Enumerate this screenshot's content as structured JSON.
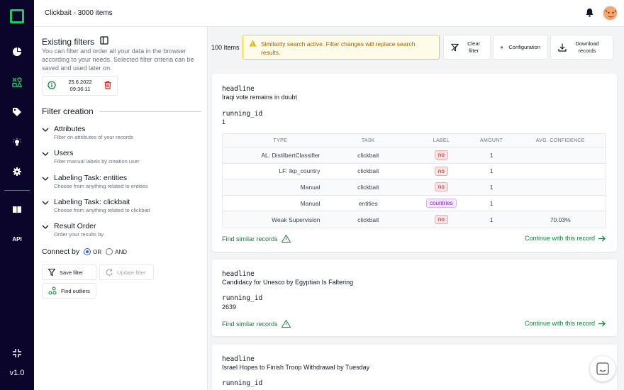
{
  "app": {
    "title": "Clickbait - 3000 items",
    "version": "v1.0",
    "api_label": "API"
  },
  "filters": {
    "existing_title": "Existing filters",
    "existing_desc": "You can filter and order all your data in the browser according to your needs. Selected filter criteria can be saved and used later on.",
    "saved_date": "25.6.2022",
    "saved_time": "09:36:11",
    "creation_title": "Filter creation",
    "sections": [
      {
        "title": "Attributes",
        "subtitle": "Filter on attributes of your records"
      },
      {
        "title": "Users",
        "subtitle": "Filter manual labels by creation user"
      },
      {
        "title": "Labeling Task:  entities",
        "subtitle": "Choose from anything related to entities"
      },
      {
        "title": "Labeling Task:  clickbait",
        "subtitle": "Choose from anything related to clickbait"
      },
      {
        "title": "Result Order",
        "subtitle": "Order your results by"
      }
    ],
    "connect_label": "Connect by",
    "or_label": "OR",
    "and_label": "AND",
    "save_filter": "Save filter",
    "update_filter": "Update filter",
    "find_outliers": "Find outliers"
  },
  "toolbar": {
    "items_count": "100 Items",
    "warning": "Similarity search active. Filter changes will replace search results.",
    "clear_filter": "Clear filter",
    "configuration": "Configuration",
    "download_records": "Download records"
  },
  "table_headers": [
    "TYPE",
    "TASK",
    "LABEL",
    "AMOUNT",
    "AVG. CONFIDENCE"
  ],
  "records": [
    {
      "headline_key": "headline",
      "headline": "Iraqi vote remains in doubt",
      "id_key": "running_id",
      "id": "1",
      "rows": [
        {
          "type": "AL: DistilbertClassifier",
          "task": "clickbait",
          "label": "no",
          "amount": "1",
          "conf": ""
        },
        {
          "type": "LF: lkp_country",
          "task": "clickbait",
          "label": "no",
          "amount": "1",
          "conf": ""
        },
        {
          "type": "Manual",
          "task": "clickbait",
          "label": "no",
          "amount": "1",
          "conf": ""
        },
        {
          "type": "Manual",
          "task": "entities",
          "label": "countries",
          "amount": "1",
          "conf": ""
        },
        {
          "type": "Weak Supervision",
          "task": "clickbait",
          "label": "no",
          "amount": "1",
          "conf": "70.03%"
        }
      ]
    },
    {
      "headline_key": "headline",
      "headline": "Candidacy for Unesco by Egyptian Is Faltering",
      "id_key": "running_id",
      "id": "2639"
    },
    {
      "headline_key": "headline",
      "headline": "Israel Hopes to Finish Troop Withdrawal by Tuesday",
      "id_key": "running_id"
    }
  ],
  "actions": {
    "find_similar": "Find similar records",
    "continue": "Continue with this record"
  },
  "colors": {
    "rail": "#0c052b",
    "brand": "#22c55e",
    "link": "#15803d"
  }
}
